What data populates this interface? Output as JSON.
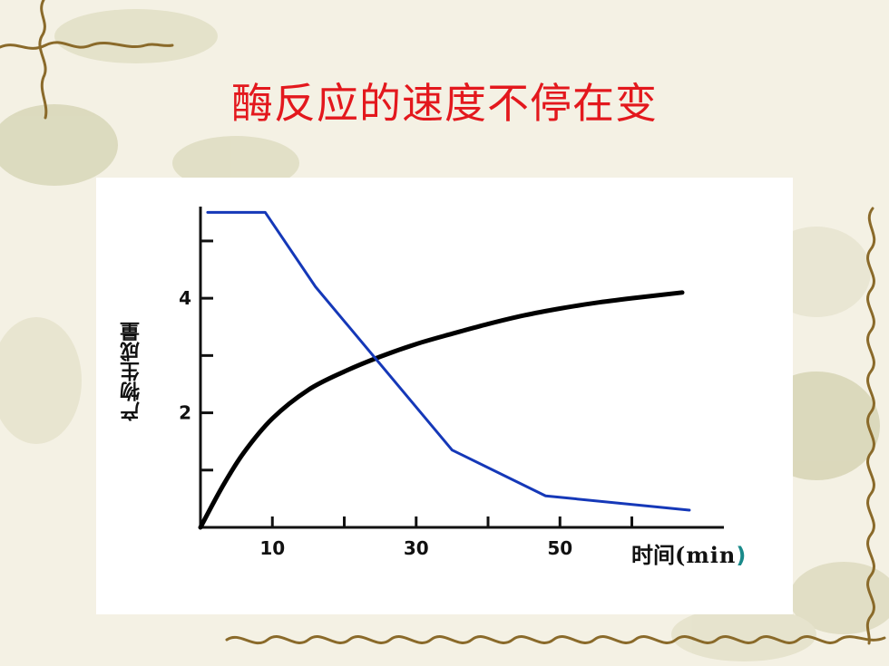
{
  "slide": {
    "title": "酶反应的速度不停在变"
  },
  "chart_data": {
    "type": "line",
    "title": "酶反应的速度不停在变",
    "xlabel": "时间(min)",
    "xlabel_main": "时间",
    "xlabel_unit": "(min",
    "xlabel_paren": ")",
    "ylabel": "产物生成量",
    "xlim": [
      0,
      67
    ],
    "ylim": [
      0,
      5.6
    ],
    "x_tick_labels": [
      {
        "value": 10,
        "label": "10"
      },
      {
        "value": 30,
        "label": "30"
      },
      {
        "value": 50,
        "label": "50"
      }
    ],
    "x_minor_ticks": [
      20,
      40,
      60
    ],
    "y_tick_labels": [
      {
        "value": 2,
        "label": "2"
      },
      {
        "value": 4,
        "label": "4"
      }
    ],
    "y_minor_ticks": [
      1,
      3,
      5
    ],
    "series": [
      {
        "color": "#000000",
        "curve": "smooth",
        "points": [
          [
            0,
            0
          ],
          [
            3,
            0.7
          ],
          [
            6,
            1.3
          ],
          [
            10,
            1.9
          ],
          [
            15,
            2.4
          ],
          [
            20,
            2.72
          ],
          [
            25,
            2.98
          ],
          [
            30,
            3.2
          ],
          [
            35,
            3.38
          ],
          [
            40,
            3.55
          ],
          [
            45,
            3.7
          ],
          [
            50,
            3.82
          ],
          [
            55,
            3.92
          ],
          [
            60,
            4.0
          ],
          [
            67,
            4.1
          ]
        ]
      },
      {
        "color": "#1538b8",
        "curve": "linear",
        "points": [
          [
            1,
            5.5
          ],
          [
            9,
            5.5
          ],
          [
            16,
            4.2
          ],
          [
            35,
            1.35
          ],
          [
            48,
            0.55
          ],
          [
            68,
            0.3
          ]
        ]
      }
    ]
  }
}
